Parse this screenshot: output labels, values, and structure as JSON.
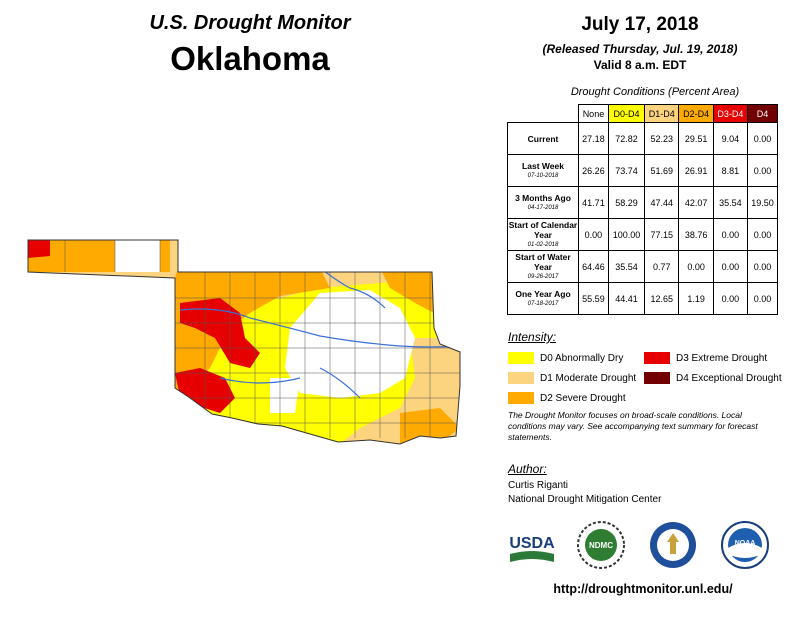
{
  "header": {
    "title_top": "U.S. Drought Monitor",
    "title_state": "Oklahoma",
    "date": "July 17, 2018",
    "released": "(Released Thursday, Jul. 19, 2018)",
    "valid": "Valid 8 a.m. EDT"
  },
  "table": {
    "caption": "Drought Conditions (Percent Area)",
    "columns": [
      "None",
      "D0-D4",
      "D1-D4",
      "D2-D4",
      "D3-D4",
      "D4"
    ],
    "column_colors": [
      "#ffffff",
      "#ffff00",
      "#fcd37f",
      "#ffaa00",
      "#e60000",
      "#730000"
    ],
    "rows": [
      {
        "label": "Current",
        "date": "",
        "values": [
          "27.18",
          "72.82",
          "52.23",
          "29.51",
          "9.04",
          "0.00"
        ]
      },
      {
        "label": "Last Week",
        "date": "07-10-2018",
        "values": [
          "26.26",
          "73.74",
          "51.69",
          "26.91",
          "8.81",
          "0.00"
        ]
      },
      {
        "label": "3 Months Ago",
        "date": "04-17-2018",
        "values": [
          "41.71",
          "58.29",
          "47.44",
          "42.07",
          "35.54",
          "19.50"
        ]
      },
      {
        "label": "Start of Calendar Year",
        "date": "01-02-2018",
        "values": [
          "0.00",
          "100.00",
          "77.15",
          "38.76",
          "0.00",
          "0.00"
        ]
      },
      {
        "label": "Start of Water Year",
        "date": "09-26-2017",
        "values": [
          "64.46",
          "35.54",
          "0.77",
          "0.00",
          "0.00",
          "0.00"
        ]
      },
      {
        "label": "One Year Ago",
        "date": "07-18-2017",
        "values": [
          "55.59",
          "44.41",
          "12.65",
          "1.19",
          "0.00",
          "0.00"
        ]
      }
    ]
  },
  "legend": {
    "heading": "Intensity:",
    "items": [
      {
        "label": "D0 Abnormally Dry",
        "color": "#ffff00"
      },
      {
        "label": "D1 Moderate Drought",
        "color": "#fcd37f"
      },
      {
        "label": "D2 Severe Drought",
        "color": "#ffaa00"
      },
      {
        "label": "D3 Extreme Drought",
        "color": "#e60000"
      },
      {
        "label": "D4 Exceptional Drought",
        "color": "#730000"
      }
    ]
  },
  "note": "The Drought Monitor focuses on broad-scale conditions. Local conditions may vary. See accompanying text summary for forecast statements.",
  "author": {
    "heading": "Author:",
    "name": "Curtis Riganti",
    "org": "National Drought Mitigation Center"
  },
  "logos": {
    "usda": "USDA",
    "ndmc": "NDMC",
    "noaa": "NOAA"
  },
  "url": "http://droughtmonitor.unl.edu/"
}
